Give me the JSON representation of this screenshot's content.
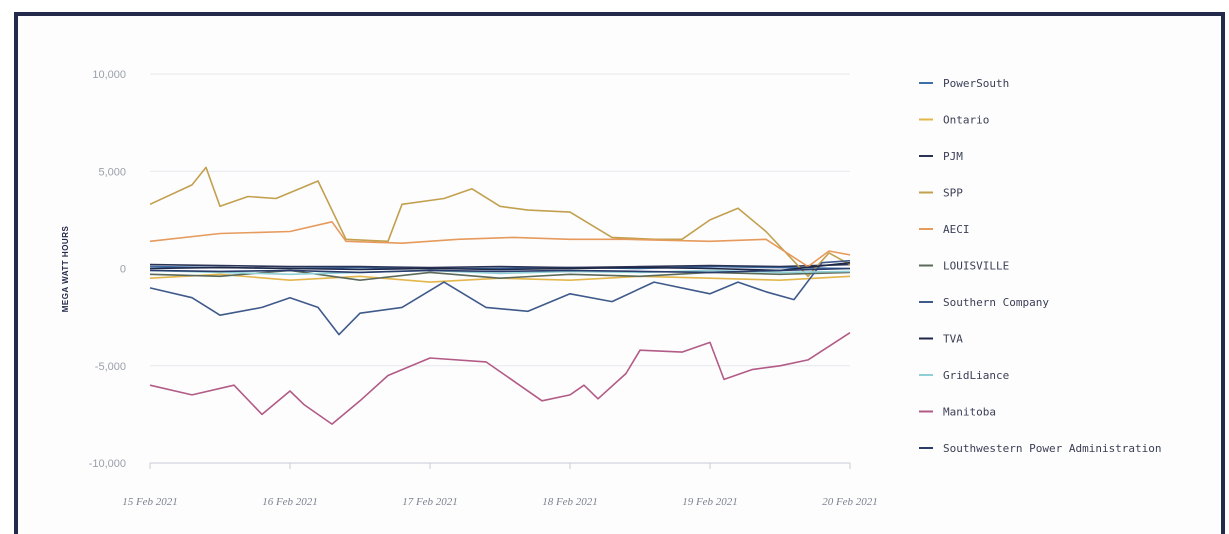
{
  "chart_data": {
    "type": "line",
    "xlabel": "",
    "ylabel": "MEGA WATT HOURS",
    "ylim": [
      -10000,
      10000
    ],
    "yticks": [
      "10,000",
      "5,000",
      "0",
      "-5,000",
      "-10,000"
    ],
    "xticks": [
      "15 Feb 2021",
      "16 Feb 2021",
      "17 Feb 2021",
      "18 Feb 2021",
      "19 Feb 2021",
      "20 Feb 2021"
    ],
    "xrange": [
      "2021-02-15",
      "2021-02-20"
    ],
    "grid": "horizontal",
    "legend_position": "right",
    "series": [
      {
        "name": "PowerSouth",
        "color": "#3c6ea8",
        "x": [
          0,
          0.5,
          1,
          1.5,
          2,
          2.5,
          3,
          3.5,
          4,
          4.5,
          5
        ],
        "values": [
          100,
          50,
          0,
          50,
          0,
          0,
          50,
          0,
          100,
          50,
          0
        ]
      },
      {
        "name": "Ontario",
        "color": "#e3b64a",
        "x": [
          0,
          0.5,
          1,
          1.5,
          2,
          2.5,
          3,
          3.5,
          4,
          4.5,
          5
        ],
        "values": [
          -500,
          -300,
          -600,
          -400,
          -700,
          -500,
          -600,
          -400,
          -500,
          -600,
          -400
        ]
      },
      {
        "name": "PJM",
        "color": "#2c3455",
        "x": [
          0,
          0.5,
          1,
          1.5,
          2,
          2.5,
          3,
          3.5,
          4,
          4.5,
          5
        ],
        "values": [
          200,
          150,
          100,
          100,
          50,
          100,
          50,
          100,
          150,
          100,
          200
        ]
      },
      {
        "name": "SPP",
        "color": "#c2a04e",
        "x": [
          0,
          0.3,
          0.4,
          0.5,
          0.7,
          0.9,
          1.2,
          1.4,
          1.7,
          1.8,
          2.1,
          2.3,
          2.5,
          2.7,
          3.0,
          3.3,
          3.6,
          3.8,
          4.0,
          4.2,
          4.4,
          4.7,
          4.85,
          5
        ],
        "values": [
          3300,
          4300,
          5200,
          3200,
          3700,
          3600,
          4500,
          1500,
          1400,
          3300,
          3600,
          4100,
          3200,
          3000,
          2900,
          1600,
          1500,
          1500,
          2500,
          3100,
          1900,
          -400,
          800,
          200
        ]
      },
      {
        "name": "AECI",
        "color": "#e69a5c",
        "x": [
          0,
          0.5,
          1,
          1.3,
          1.4,
          1.8,
          2.2,
          2.6,
          3.0,
          3.4,
          4.0,
          4.4,
          4.7,
          4.85,
          5
        ],
        "values": [
          1400,
          1800,
          1900,
          2400,
          1400,
          1300,
          1500,
          1600,
          1500,
          1500,
          1400,
          1500,
          100,
          900,
          700
        ]
      },
      {
        "name": "LOUISVILLE",
        "color": "#5b6a5a",
        "x": [
          0,
          0.5,
          1,
          1.5,
          2,
          2.5,
          3,
          3.5,
          4,
          4.5,
          5
        ],
        "values": [
          -300,
          -400,
          -100,
          -600,
          -200,
          -500,
          -300,
          -400,
          -200,
          -300,
          -200
        ]
      },
      {
        "name": "Southern Company",
        "color": "#3f5a8a",
        "x": [
          0,
          0.3,
          0.5,
          0.8,
          1.0,
          1.2,
          1.35,
          1.5,
          1.8,
          2.1,
          2.4,
          2.7,
          3.0,
          3.3,
          3.6,
          4.0,
          4.2,
          4.4,
          4.6,
          4.8,
          5
        ],
        "values": [
          -1000,
          -1500,
          -2400,
          -2000,
          -1500,
          -2000,
          -3400,
          -2300,
          -2000,
          -700,
          -2000,
          -2200,
          -1300,
          -1700,
          -700,
          -1300,
          -700,
          -1200,
          -1600,
          300,
          400
        ]
      },
      {
        "name": "TVA",
        "color": "#1f2747",
        "x": [
          0,
          0.5,
          1,
          1.5,
          2,
          2.5,
          3,
          3.5,
          4,
          4.5,
          5
        ],
        "values": [
          0,
          50,
          0,
          -50,
          0,
          -50,
          0,
          50,
          0,
          -100,
          300
        ]
      },
      {
        "name": "GridLiance",
        "color": "#8fcfd6",
        "x": [
          0,
          0.5,
          1,
          1.5,
          2,
          2.5,
          3,
          3.5,
          4,
          4.5,
          5
        ],
        "values": [
          -100,
          -200,
          -300,
          -200,
          -100,
          -250,
          -150,
          -200,
          -100,
          -200,
          -150
        ]
      },
      {
        "name": "Manitoba",
        "color": "#b25b86",
        "x": [
          0,
          0.3,
          0.6,
          0.8,
          1.0,
          1.1,
          1.3,
          1.5,
          1.7,
          2.0,
          2.4,
          2.6,
          2.8,
          3.0,
          3.1,
          3.2,
          3.4,
          3.5,
          3.8,
          4.0,
          4.1,
          4.3,
          4.5,
          4.7,
          4.85,
          5
        ],
        "values": [
          -6000,
          -6500,
          -6000,
          -7500,
          -6300,
          -7000,
          -8000,
          -6800,
          -5500,
          -4600,
          -4800,
          -5800,
          -6800,
          -6500,
          -6000,
          -6700,
          -5400,
          -4200,
          -4300,
          -3800,
          -5700,
          -5200,
          -5000,
          -4700,
          -4000,
          -3300
        ]
      },
      {
        "name": "Southwestern Power Administration",
        "color": "#2a3c6b",
        "x": [
          0,
          0.5,
          1,
          1.5,
          2,
          2.5,
          3,
          3.5,
          4,
          4.5,
          5
        ],
        "values": [
          -100,
          -150,
          -100,
          -200,
          -100,
          -150,
          -100,
          -150,
          -200,
          -100,
          0
        ]
      }
    ]
  }
}
